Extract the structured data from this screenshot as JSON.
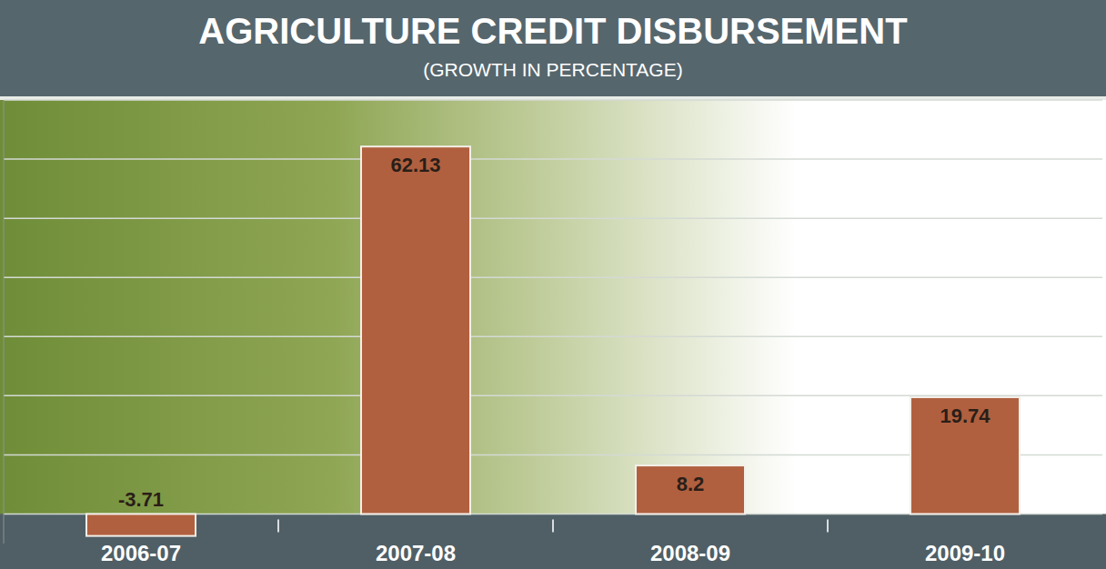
{
  "chart_data": {
    "type": "bar",
    "title": "AGRICULTURE CREDIT DISBURSEMENT",
    "subtitle": "(GROWTH IN PERCENTAGE)",
    "categories": [
      "2006-07",
      "2007-08",
      "2008-09",
      "2009-10"
    ],
    "values": [
      -3.71,
      62.13,
      8.2,
      19.74
    ],
    "color": "#b0603f",
    "ylim": [
      -5,
      70
    ],
    "yticks": [
      0,
      10,
      20,
      30,
      40,
      50,
      60,
      70
    ],
    "grid": true,
    "data_labels": true,
    "tick_labels": "x"
  }
}
